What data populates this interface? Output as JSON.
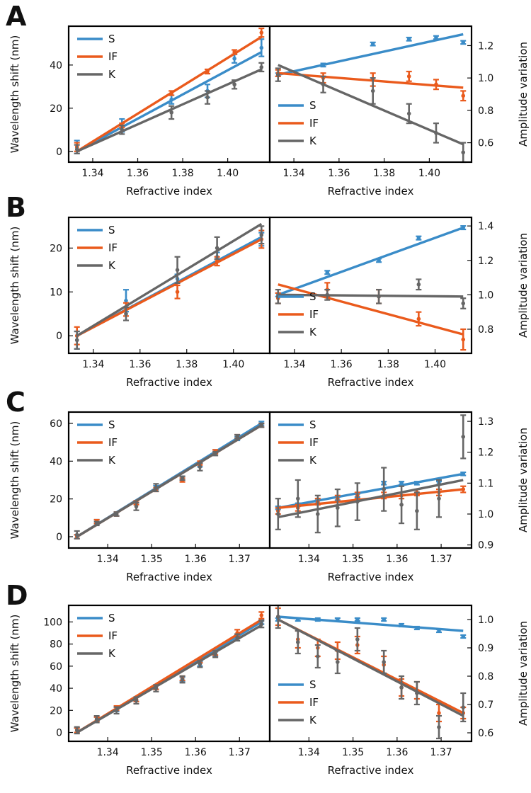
{
  "figure": {
    "description_free": true
  },
  "colors": {
    "S": "#3a8cc8",
    "IF": "#ea5a1c",
    "K": "#666666"
  },
  "chart_data": [
    {
      "panel": "A",
      "xlabel": "Refractive index",
      "x": [
        1.333,
        1.353,
        1.375,
        1.391,
        1.403,
        1.415
      ],
      "x_ticks": [
        1.34,
        1.36,
        1.38,
        1.4
      ],
      "left": {
        "type": "line",
        "ylabel": "Wavelength shift (nm)",
        "ylim": [
          -5,
          58
        ],
        "y_ticks": [
          0,
          20,
          40
        ],
        "legend": [
          "S",
          "IF",
          "K"
        ],
        "legend_position": "top-left",
        "series": [
          {
            "name": "S",
            "values": [
              2,
              12,
              24,
              28,
              43,
              48
            ],
            "errors": [
              3,
              3,
              2,
              3,
              2,
              4
            ],
            "fit": [
              0,
              46
            ]
          },
          {
            "name": "IF",
            "values": [
              2,
              12,
              27,
              37,
              46,
              55
            ],
            "errors": [
              2,
              1,
              1,
              1,
              1,
              2
            ],
            "fit": [
              0,
              53
            ]
          },
          {
            "name": "K",
            "values": [
              1,
              10,
              18,
              25,
              31,
              39
            ],
            "errors": [
              2,
              2,
              3,
              3,
              2,
              2
            ],
            "fit": [
              0,
              38
            ]
          }
        ]
      },
      "right": {
        "type": "line",
        "ylabel": "Amplitude variation",
        "ylim": [
          0.48,
          1.32
        ],
        "y_ticks": [
          0.6,
          0.8,
          1.0,
          1.2
        ],
        "legend": [
          "S",
          "IF",
          "K"
        ],
        "legend_position": "bottom-left",
        "series": [
          {
            "name": "S",
            "values": [
              1.02,
              1.08,
              1.21,
              1.24,
              1.25,
              1.22
            ],
            "errors": [
              0.01,
              0.01,
              0.01,
              0.01,
              0.01,
              0.01
            ],
            "fit": [
              1.02,
              1.27
            ]
          },
          {
            "name": "IF",
            "values": [
              1.03,
              1.0,
              0.99,
              1.01,
              0.96,
              0.89
            ],
            "errors": [
              0.02,
              0.03,
              0.04,
              0.03,
              0.03,
              0.03
            ],
            "fit": [
              1.03,
              0.94
            ]
          },
          {
            "name": "K",
            "values": [
              1.02,
              0.96,
              0.92,
              0.78,
              0.66,
              0.54
            ],
            "errors": [
              0.04,
              0.05,
              0.08,
              0.06,
              0.06,
              0.06
            ],
            "fit": [
              1.08,
              0.59
            ]
          }
        ]
      }
    },
    {
      "panel": "B",
      "xlabel": "Refractive index",
      "x": [
        1.333,
        1.354,
        1.376,
        1.393,
        1.412
      ],
      "x_ticks": [
        1.34,
        1.36,
        1.38,
        1.4
      ],
      "left": {
        "type": "line",
        "ylabel": "Wavelength shift (nm)",
        "ylim": [
          -4,
          27
        ],
        "y_ticks": [
          0,
          10,
          20
        ],
        "legend": [
          "S",
          "IF",
          "K"
        ],
        "legend_position": "top-left",
        "series": [
          {
            "name": "S",
            "values": [
              -1,
              8,
              13,
              18,
              22
            ],
            "errors": [
              2,
              2.5,
              1,
              1,
              1.5
            ],
            "fit": [
              0,
              22.5
            ]
          },
          {
            "name": "IF",
            "values": [
              0,
              6,
              10,
              17,
              22
            ],
            "errors": [
              2,
              1.5,
              1.5,
              1,
              2
            ],
            "fit": [
              0,
              22
            ]
          },
          {
            "name": "K",
            "values": [
              -1,
              5,
              15,
              20,
              23
            ],
            "errors": [
              2,
              1.5,
              3,
              2.5,
              2
            ],
            "fit": [
              0,
              25.5
            ]
          }
        ]
      },
      "right": {
        "type": "line",
        "ylabel": "Amplitude variation",
        "ylim": [
          0.66,
          1.45
        ],
        "y_ticks": [
          0.8,
          1.0,
          1.2,
          1.4
        ],
        "legend": [
          "S",
          "IF",
          "K"
        ],
        "legend_position": "bottom-left",
        "series": [
          {
            "name": "S",
            "values": [
              1.0,
              1.13,
              1.2,
              1.33,
              1.39
            ],
            "errors": [
              0.01,
              0.01,
              0.01,
              0.01,
              0.01
            ],
            "fit": [
              1.0,
              1.39
            ]
          },
          {
            "name": "IF",
            "values": [
              0.98,
              1.03,
              0.99,
              0.86,
              0.74
            ],
            "errors": [
              0.03,
              0.04,
              0.04,
              0.04,
              0.06
            ],
            "fit": [
              1.06,
              0.77
            ]
          },
          {
            "name": "K",
            "values": [
              0.99,
              1.0,
              0.99,
              1.06,
              0.95
            ],
            "errors": [
              0.04,
              0.03,
              0.04,
              0.03,
              0.03
            ],
            "fit": [
              1.0,
              0.99
            ]
          }
        ]
      }
    },
    {
      "panel": "C",
      "xlabel": "Refractive index",
      "x": [
        1.333,
        1.3375,
        1.342,
        1.3465,
        1.351,
        1.357,
        1.361,
        1.3645,
        1.3695,
        1.375
      ],
      "x_ticks": [
        1.34,
        1.35,
        1.36,
        1.37
      ],
      "left": {
        "type": "line",
        "ylabel": "Wavelength shift (nm)",
        "ylim": [
          -6,
          66
        ],
        "y_ticks": [
          0,
          20,
          40,
          60
        ],
        "legend": [
          "S",
          "IF",
          "K"
        ],
        "legend_position": "top-left",
        "series": [
          {
            "name": "S",
            "values": [
              0,
              8,
              12,
              18,
              26,
              31,
              38,
              45,
              52,
              60
            ],
            "errors": [
              1,
              1,
              1,
              1,
              1,
              1,
              1,
              1,
              1,
              1
            ],
            "fit": [
              0,
              60
            ]
          },
          {
            "name": "IF",
            "values": [
              0,
              8,
              12,
              18,
              25,
              30,
              39,
              45,
              53,
              59
            ],
            "errors": [
              1,
              1,
              1,
              1,
              1,
              1,
              1,
              1,
              1,
              1
            ],
            "fit": [
              0,
              59
            ]
          },
          {
            "name": "K",
            "values": [
              1,
              7,
              12,
              16,
              26,
              31,
              37,
              44,
              53,
              59
            ],
            "errors": [
              2,
              1,
              1,
              2,
              2,
              1,
              2,
              1,
              1,
              1
            ],
            "fit": [
              0,
              59
            ]
          }
        ]
      },
      "right": {
        "type": "line",
        "ylabel": "Amplitude variation",
        "ylim": [
          0.89,
          1.33
        ],
        "y_ticks": [
          0.9,
          1.0,
          1.1,
          1.2,
          1.3
        ],
        "legend": [
          "S",
          "IF",
          "K"
        ],
        "legend_position": "top-left",
        "series": [
          {
            "name": "S",
            "values": [
              1.02,
              1.03,
              1.04,
              1.05,
              1.06,
              1.1,
              1.1,
              1.1,
              1.1,
              1.13
            ],
            "errors": [
              0.005,
              0.005,
              0.005,
              0.005,
              0.005,
              0.005,
              0.005,
              0.005,
              0.005,
              0.005
            ],
            "fit": [
              1.02,
              1.13
            ]
          },
          {
            "name": "IF",
            "values": [
              1.01,
              1.02,
              1.04,
              1.05,
              1.06,
              1.06,
              1.06,
              1.07,
              1.07,
              1.08
            ],
            "errors": [
              0.01,
              0.01,
              0.01,
              0.01,
              0.01,
              0.01,
              0.01,
              0.01,
              0.01,
              0.01
            ],
            "fit": [
              1.02,
              1.08
            ]
          },
          {
            "name": "K",
            "values": [
              1.0,
              1.05,
              1.0,
              1.02,
              1.04,
              1.08,
              1.03,
              1.01,
              1.05,
              1.25
            ],
            "errors": [
              0.05,
              0.06,
              0.06,
              0.06,
              0.06,
              0.07,
              0.06,
              0.06,
              0.06,
              0.07
            ],
            "fit": [
              0.99,
              1.11
            ]
          }
        ]
      }
    },
    {
      "panel": "D",
      "xlabel": "Refractive index",
      "x": [
        1.333,
        1.3375,
        1.342,
        1.3465,
        1.351,
        1.357,
        1.361,
        1.3645,
        1.3695,
        1.375
      ],
      "x_ticks": [
        1.34,
        1.35,
        1.36,
        1.37
      ],
      "left": {
        "type": "line",
        "ylabel": "Wavelength shift (nm)",
        "ylim": [
          -8,
          115
        ],
        "y_ticks": [
          0,
          20,
          40,
          60,
          80,
          100
        ],
        "legend": [
          "S",
          "IF",
          "K"
        ],
        "legend_position": "top-left",
        "series": [
          {
            "name": "S",
            "values": [
              2,
              12,
              21,
              30,
              41,
              48,
              62,
              71,
              87,
              100
            ],
            "errors": [
              2,
              2,
              2,
              2,
              2,
              2,
              2,
              2,
              2,
              2
            ],
            "fit": [
              0,
              100
            ]
          },
          {
            "name": "IF",
            "values": [
              2,
              12,
              22,
              30,
              41,
              49,
              65,
              72,
              90,
              106
            ],
            "errors": [
              2,
              2,
              2,
              2,
              2,
              2,
              2,
              2,
              3,
              3
            ],
            "fit": [
              0,
              102
            ]
          },
          {
            "name": "K",
            "values": [
              2,
              12,
              20,
              29,
              40,
              48,
              62,
              71,
              86,
              98
            ],
            "errors": [
              3,
              3,
              3,
              3,
              3,
              3,
              3,
              3,
              3,
              3
            ],
            "fit": [
              0,
              97
            ]
          }
        ]
      },
      "right": {
        "type": "line",
        "ylabel": "Amplitude variation",
        "ylim": [
          0.57,
          1.05
        ],
        "y_ticks": [
          0.6,
          0.7,
          0.8,
          0.9,
          1.0
        ],
        "legend": [
          "S",
          "IF",
          "K"
        ],
        "legend_position": "bottom-left",
        "series": [
          {
            "name": "S",
            "values": [
              1.0,
              1.0,
              1.0,
              1.0,
              1.0,
              1.0,
              0.98,
              0.97,
              0.96,
              0.94
            ],
            "errors": [
              0.005,
              0.005,
              0.005,
              0.005,
              0.005,
              0.005,
              0.005,
              0.005,
              0.005,
              0.005
            ],
            "fit": [
              1.01,
              0.96
            ]
          },
          {
            "name": "IF",
            "values": [
              1.01,
              0.93,
              0.9,
              0.89,
              0.91,
              0.84,
              0.76,
              0.75,
              0.67,
              0.67
            ],
            "errors": [
              0.03,
              0.03,
              0.03,
              0.03,
              0.03,
              0.03,
              0.03,
              0.03,
              0.03,
              0.02
            ],
            "fit": [
              1.0,
              0.67
            ]
          },
          {
            "name": "K",
            "values": [
              1.01,
              0.92,
              0.87,
              0.85,
              0.93,
              0.85,
              0.76,
              0.74,
              0.62,
              0.69
            ],
            "errors": [
              0.04,
              0.04,
              0.04,
              0.04,
              0.04,
              0.04,
              0.04,
              0.04,
              0.04,
              0.05
            ],
            "fit": [
              1.0,
              0.66
            ]
          }
        ]
      }
    }
  ]
}
